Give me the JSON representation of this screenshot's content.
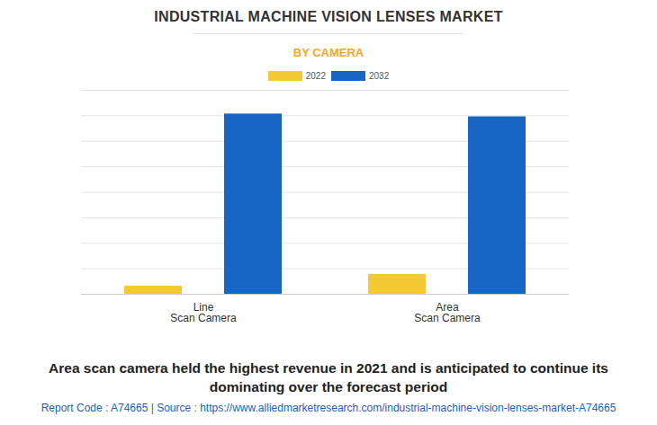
{
  "chart_data": {
    "type": "bar",
    "title": "INDUSTRIAL MACHINE VISION LENSES MARKET",
    "subtitle": "BY CAMERA",
    "caption": "Area scan camera held the highest revenue in 2021 and is anticipated to continue its dominating over the forecast period",
    "footer": "Report Code : A74665  |  Source : https://www.alliedmarketresearch.com/industrial-machine-vision-lenses-market-A74665",
    "categories": [
      "Line Scan Camera",
      "Area Scan Camera"
    ],
    "series": [
      {
        "name": "2022",
        "color": "#f5c933",
        "values": [
          0.32,
          0.78
        ]
      },
      {
        "name": "2032",
        "color": "#1766c3",
        "values": [
          7.07,
          6.96
        ]
      }
    ],
    "ylim": [
      0,
      8
    ],
    "yticks": [
      0,
      1,
      2,
      3,
      4,
      5,
      6,
      7,
      8
    ],
    "grid": true,
    "tick_labels": "x",
    "legend": "top"
  }
}
